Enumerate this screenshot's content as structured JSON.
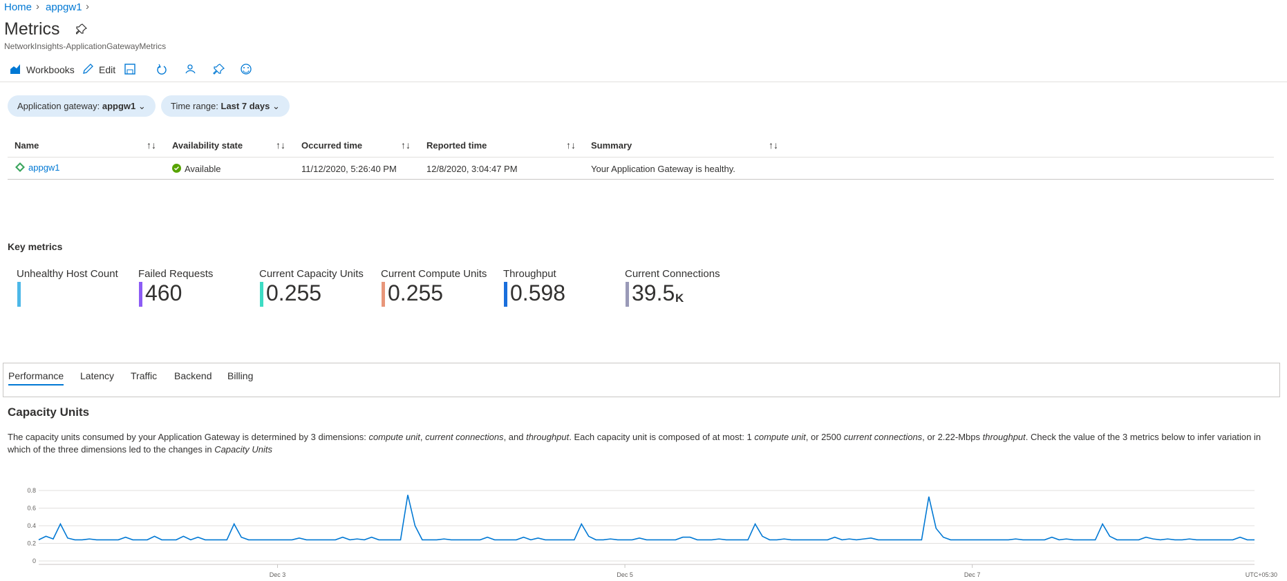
{
  "breadcrumb": [
    "Home",
    "appgw1"
  ],
  "header": {
    "title": "Metrics",
    "subtitle": "NetworkInsights-ApplicationGatewayMetrics"
  },
  "toolbar": [
    "Workbooks",
    "Edit"
  ],
  "filters": [
    {
      "label": "Application gateway:",
      "value": "appgw1"
    },
    {
      "label": "Time range:",
      "value": "Last 7 days"
    }
  ],
  "table": {
    "columns": [
      "Name",
      "Availability state",
      "Occurred time",
      "Reported time",
      "Summary"
    ],
    "rows": [
      [
        "appgw1",
        "Available",
        "11/12/2020, 5:26:40 PM",
        "12/8/2020, 3:04:47 PM",
        "Your Application Gateway is healthy."
      ]
    ]
  },
  "key_metrics": {
    "title": "Key metrics",
    "items": [
      {
        "label": "Unhealthy Host Count",
        "color": "#4db8e8"
      },
      {
        "label": "Failed Requests",
        "value": 460,
        "color": "#8c5cf5"
      },
      {
        "label": "Current Capacity Units",
        "value": 0.255,
        "color": "#3ddcc4"
      },
      {
        "label": "Current Compute Units",
        "value": 0.255,
        "color": "#e8967a"
      },
      {
        "label": "Throughput",
        "value": 0.598,
        "color": "#1a6fdc"
      },
      {
        "label": "Current Connections",
        "value": 39.5,
        "unit": "K",
        "color": "#9a9ab8"
      }
    ]
  },
  "tabs": [
    "Performance",
    "Latency",
    "Traffic",
    "Backend",
    "Billing"
  ],
  "section": {
    "title": "Capacity Units",
    "description": [
      {
        "text": "The capacity units consumed by your Application Gateway is determined by 3 dimensions: ",
        "italic": false
      },
      {
        "text": "compute unit",
        "italic": true
      },
      {
        "text": ", ",
        "italic": false
      },
      {
        "text": "current connections",
        "italic": true
      },
      {
        "text": ", and ",
        "italic": false
      },
      {
        "text": "throughput",
        "italic": true
      },
      {
        "text": ". Each capacity unit is composed of at most: 1 ",
        "italic": false
      },
      {
        "text": "compute unit",
        "italic": true
      },
      {
        "text": ", or 2500 ",
        "italic": false
      },
      {
        "text": "current connections",
        "italic": true
      },
      {
        "text": ", or 2.22-Mbps ",
        "italic": false
      },
      {
        "text": "throughput",
        "italic": true
      },
      {
        "text": ". Check the value of the 3 metrics below to infer variation in which of the three dimensions led to the changes in ",
        "italic": false
      },
      {
        "text": "Capacity Units",
        "italic": true
      }
    ]
  },
  "chart_data": {
    "type": "line",
    "color": "#0078d4",
    "grid": true,
    "timezone": "UTC+05:30",
    "xlim": [
      0,
      168
    ],
    "xticks": [
      {
        "value": 33,
        "label": "Dec 3"
      },
      {
        "value": 81,
        "label": "Dec 5"
      },
      {
        "value": 129,
        "label": "Dec 7"
      }
    ],
    "ylim": [
      0,
      0.8
    ],
    "yticks": [
      0,
      0.2,
      0.4,
      0.6,
      0.8
    ],
    "values": [
      0.24,
      0.28,
      0.25,
      0.42,
      0.26,
      0.24,
      0.24,
      0.25,
      0.24,
      0.24,
      0.24,
      0.24,
      0.27,
      0.24,
      0.24,
      0.24,
      0.28,
      0.24,
      0.24,
      0.24,
      0.28,
      0.24,
      0.27,
      0.24,
      0.24,
      0.24,
      0.24,
      0.42,
      0.27,
      0.24,
      0.24,
      0.24,
      0.24,
      0.24,
      0.24,
      0.24,
      0.26,
      0.24,
      0.24,
      0.24,
      0.24,
      0.24,
      0.27,
      0.24,
      0.25,
      0.24,
      0.27,
      0.24,
      0.24,
      0.24,
      0.24,
      0.75,
      0.4,
      0.24,
      0.24,
      0.24,
      0.25,
      0.24,
      0.24,
      0.24,
      0.24,
      0.24,
      0.27,
      0.24,
      0.24,
      0.24,
      0.24,
      0.27,
      0.24,
      0.26,
      0.24,
      0.24,
      0.24,
      0.24,
      0.24,
      0.42,
      0.28,
      0.24,
      0.24,
      0.25,
      0.24,
      0.24,
      0.24,
      0.26,
      0.24,
      0.24,
      0.24,
      0.24,
      0.24,
      0.27,
      0.27,
      0.24,
      0.24,
      0.24,
      0.25,
      0.24,
      0.24,
      0.24,
      0.24,
      0.42,
      0.28,
      0.24,
      0.24,
      0.25,
      0.24,
      0.24,
      0.24,
      0.24,
      0.24,
      0.24,
      0.27,
      0.24,
      0.25,
      0.24,
      0.25,
      0.26,
      0.24,
      0.24,
      0.24,
      0.24,
      0.24,
      0.24,
      0.24,
      0.73,
      0.37,
      0.27,
      0.24,
      0.24,
      0.24,
      0.24,
      0.24,
      0.24,
      0.24,
      0.24,
      0.24,
      0.25,
      0.24,
      0.24,
      0.24,
      0.24,
      0.27,
      0.24,
      0.25,
      0.24,
      0.24,
      0.24,
      0.24,
      0.42,
      0.28,
      0.24,
      0.24,
      0.24,
      0.24,
      0.27,
      0.25,
      0.24,
      0.25,
      0.24,
      0.24,
      0.25,
      0.24,
      0.24,
      0.24,
      0.24,
      0.24,
      0.24,
      0.27,
      0.24,
      0.24
    ]
  }
}
